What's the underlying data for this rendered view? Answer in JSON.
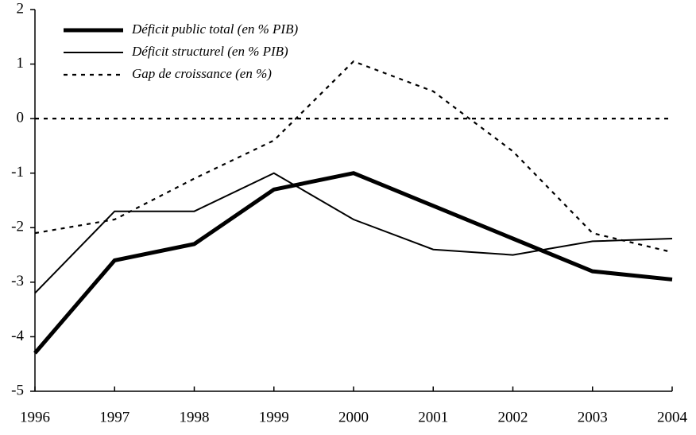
{
  "chart_data": {
    "type": "line",
    "x": [
      1996,
      1997,
      1998,
      1999,
      2000,
      2001,
      2002,
      2003,
      2004
    ],
    "series": [
      {
        "name": "Déficit public total (en % PIB)",
        "color": "#000000",
        "values": [
          -4.3,
          -2.6,
          -2.3,
          -1.3,
          -1.0,
          -1.6,
          -2.2,
          -2.8,
          -2.95
        ]
      },
      {
        "name": "Déficit structurel (en % PIB)",
        "color": "#000000",
        "values": [
          -3.2,
          -1.7,
          -1.7,
          -1.0,
          -1.85,
          -2.4,
          -2.5,
          -2.25,
          -2.2
        ]
      },
      {
        "name": "Gap de croissance (en %)",
        "color": "#000000",
        "values": [
          -2.1,
          -1.85,
          -1.1,
          -0.4,
          1.05,
          0.5,
          -0.6,
          -2.1,
          -2.45
        ]
      }
    ],
    "xlim": [
      1996,
      2004
    ],
    "xticks": [
      1996,
      1997,
      1998,
      1999,
      2000,
      2001,
      2002,
      2003,
      2004
    ],
    "ylim": [
      -5,
      2
    ],
    "yticks": [
      -5,
      -4,
      -3,
      -2,
      -1,
      0,
      1,
      2
    ],
    "legend": "upper left"
  }
}
